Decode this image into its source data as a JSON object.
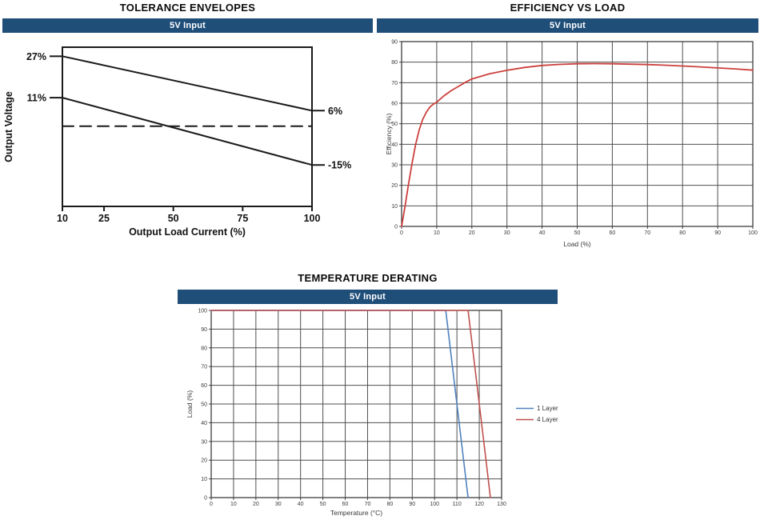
{
  "colors": {
    "banner_bg": "#1f4e79",
    "banner_text": "#ffffff",
    "grid": "#4f4f4f",
    "plot_border": "#3d3d3d",
    "axis_text_small": "#3a3a3a",
    "axis_text_plain": "#111111",
    "series_blue": "#4f81bd",
    "series_red": "#c0504d",
    "efficiency_red": "#cb403c"
  },
  "chart_data": [
    {
      "type": "line",
      "title": "TOLERANCE ENVELOPES",
      "banner": "5V Input",
      "xlabel": "Output Load Current (%)",
      "ylabel": "Output Voltage",
      "xlim": [
        10,
        100
      ],
      "ylim": [
        -31,
        30.5
      ],
      "xticks": [
        10,
        25,
        50,
        75,
        100
      ],
      "grid": false,
      "left_labels": [
        {
          "value": 27,
          "label": "27%"
        },
        {
          "value": 11,
          "label": "11%"
        }
      ],
      "right_labels": [
        {
          "value": 6,
          "label": "6%"
        },
        {
          "value": -15,
          "label": "-15%"
        }
      ],
      "series": [
        {
          "name": "upper-tolerance-limit",
          "color": "#1a1a1a",
          "width": 2,
          "points": [
            [
              10,
              27
            ],
            [
              100,
              6
            ]
          ]
        },
        {
          "name": "lower-tolerance-limit",
          "color": "#1a1a1a",
          "width": 2,
          "points": [
            [
              10,
              11
            ],
            [
              100,
              -15
            ]
          ]
        },
        {
          "name": "nominal-output-dashed",
          "color": "#1a1a1a",
          "width": 2,
          "dash": "14 8",
          "points": [
            [
              10,
              0
            ],
            [
              100,
              0
            ]
          ]
        }
      ]
    },
    {
      "type": "line",
      "title": "EFFICIENCY VS LOAD",
      "banner": "5V Input",
      "xlabel": "Load  (%)",
      "ylabel": "Efficiency  (%)",
      "xlim": [
        0,
        100
      ],
      "ylim": [
        0,
        90
      ],
      "xticks": [
        0,
        10,
        20,
        30,
        40,
        50,
        60,
        70,
        80,
        90,
        100
      ],
      "yticks": [
        0,
        10,
        20,
        30,
        40,
        50,
        60,
        70,
        80,
        90
      ],
      "grid": true,
      "series": [
        {
          "name": "efficiency-5v-input",
          "color": "#cb403c",
          "width": 1.8,
          "points": [
            [
              0,
              0
            ],
            [
              1,
              10
            ],
            [
              2,
              21
            ],
            [
              3,
              31
            ],
            [
              4,
              40
            ],
            [
              5,
              47
            ],
            [
              6,
              52
            ],
            [
              7,
              55.5
            ],
            [
              8,
              58
            ],
            [
              9,
              59.5
            ],
            [
              10,
              60.5
            ],
            [
              12,
              63.5
            ],
            [
              14,
              66
            ],
            [
              16,
              68
            ],
            [
              18,
              70
            ],
            [
              20,
              71.8
            ],
            [
              25,
              74.3
            ],
            [
              30,
              76
            ],
            [
              35,
              77.4
            ],
            [
              40,
              78.4
            ],
            [
              45,
              78.9
            ],
            [
              50,
              79.2
            ],
            [
              55,
              79.3
            ],
            [
              60,
              79.2
            ],
            [
              65,
              79
            ],
            [
              70,
              78.8
            ],
            [
              75,
              78.5
            ],
            [
              80,
              78.1
            ],
            [
              85,
              77.7
            ],
            [
              90,
              77.2
            ],
            [
              95,
              76.7
            ],
            [
              100,
              76.1
            ]
          ]
        }
      ]
    },
    {
      "type": "line",
      "title": "TEMPERATURE DERATING",
      "banner": "5V Input",
      "xlabel": "Temperature (°C)",
      "ylabel": "Load  (%)",
      "xlim": [
        0,
        130
      ],
      "ylim": [
        0,
        100
      ],
      "xticks": [
        0,
        10,
        20,
        30,
        40,
        50,
        60,
        70,
        80,
        90,
        100,
        110,
        120,
        130
      ],
      "yticks": [
        0,
        10,
        20,
        30,
        40,
        50,
        60,
        70,
        80,
        90,
        100
      ],
      "grid": true,
      "legend": [
        {
          "label": "1 Layer",
          "color": "#4f81bd"
        },
        {
          "label": "4 Layer",
          "color": "#c0504d"
        }
      ],
      "series": [
        {
          "name": "derating-1-layer",
          "color": "#4f81bd",
          "width": 1.6,
          "points": [
            [
              0,
              100
            ],
            [
              105,
              100
            ],
            [
              113,
              20
            ],
            [
              114.5,
              5
            ],
            [
              115,
              0
            ]
          ]
        },
        {
          "name": "derating-4-layer",
          "color": "#c0504d",
          "width": 1.6,
          "points": [
            [
              0,
              100
            ],
            [
              115,
              100
            ],
            [
              123,
              20
            ],
            [
              124.5,
              5
            ],
            [
              125,
              0
            ]
          ]
        }
      ]
    }
  ]
}
